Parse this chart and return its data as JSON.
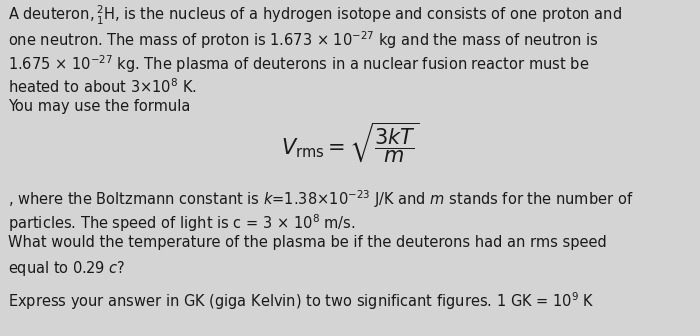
{
  "bg_color": "#d4d4d4",
  "text_color": "#1a1a1a",
  "font_size_main": 10.5,
  "font_size_formula": 15,
  "fig_width": 7.0,
  "fig_height": 3.36,
  "dpi": 100,
  "line1": "A deuteron,$\\,^2_1$H, is the nucleus of a hydrogen isotope and consists of one proton and",
  "line2": "one neutron. The mass of proton is 1.673 $\\times$ 10$^{-27}$ kg and the mass of neutron is",
  "line3": "1.675 $\\times$ 10$^{-27}$ kg. The plasma of deuterons in a nuclear fusion reactor must be",
  "line4": "heated to about 3$\\times$10$^8$ K.",
  "line5": "You may use the formula",
  "formula": "$V_{\\\\rm rms} = \\\\sqrt{\\\\dfrac{3kT}{m}}$",
  "line7": ", where the Boltzmann constant is $k$=1.38$\\times$10$^{-23}$ J/K and $m$ stands for the number of",
  "line8": "particles. The speed of light is c = 3 $\\times$ 10$^8$ m/s.",
  "line9": "What would the temperature of the plasma be if the deuterons had an rms speed",
  "line10": "equal to 0.29 $c$?",
  "line11": "Express your answer in GK (giga Kelvin) to two significant figures. 1 GK = 10$^9$ K"
}
